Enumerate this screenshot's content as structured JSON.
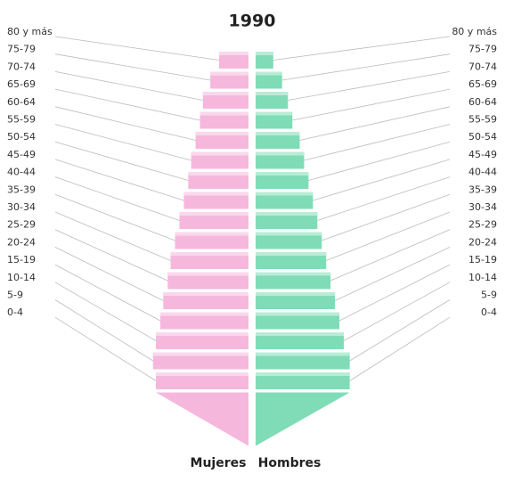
{
  "chart_data": {
    "type": "pyramid",
    "title": "1990",
    "categories": [
      "80 y más",
      "75-79",
      "70-74",
      "65-69",
      "60-64",
      "55-59",
      "50-54",
      "45-49",
      "40-44",
      "35-39",
      "30-34",
      "25-29",
      "20-24",
      "15-19",
      "10-14",
      "5-9",
      "0-4"
    ],
    "series": [
      {
        "name": "Mujeres",
        "color": "#f5b8dc",
        "side": "left",
        "values": [
          2.0,
          2.6,
          3.1,
          3.3,
          3.6,
          3.9,
          4.1,
          4.4,
          4.7,
          5.0,
          5.3,
          5.5,
          5.8,
          6.0,
          6.3,
          6.5,
          6.3
        ]
      },
      {
        "name": "Hombres",
        "color": "#7fdcb6",
        "side": "right",
        "values": [
          1.2,
          1.8,
          2.2,
          2.5,
          3.0,
          3.3,
          3.6,
          3.9,
          4.2,
          4.5,
          4.8,
          5.1,
          5.4,
          5.7,
          6.0,
          6.4,
          6.4
        ]
      }
    ]
  }
}
